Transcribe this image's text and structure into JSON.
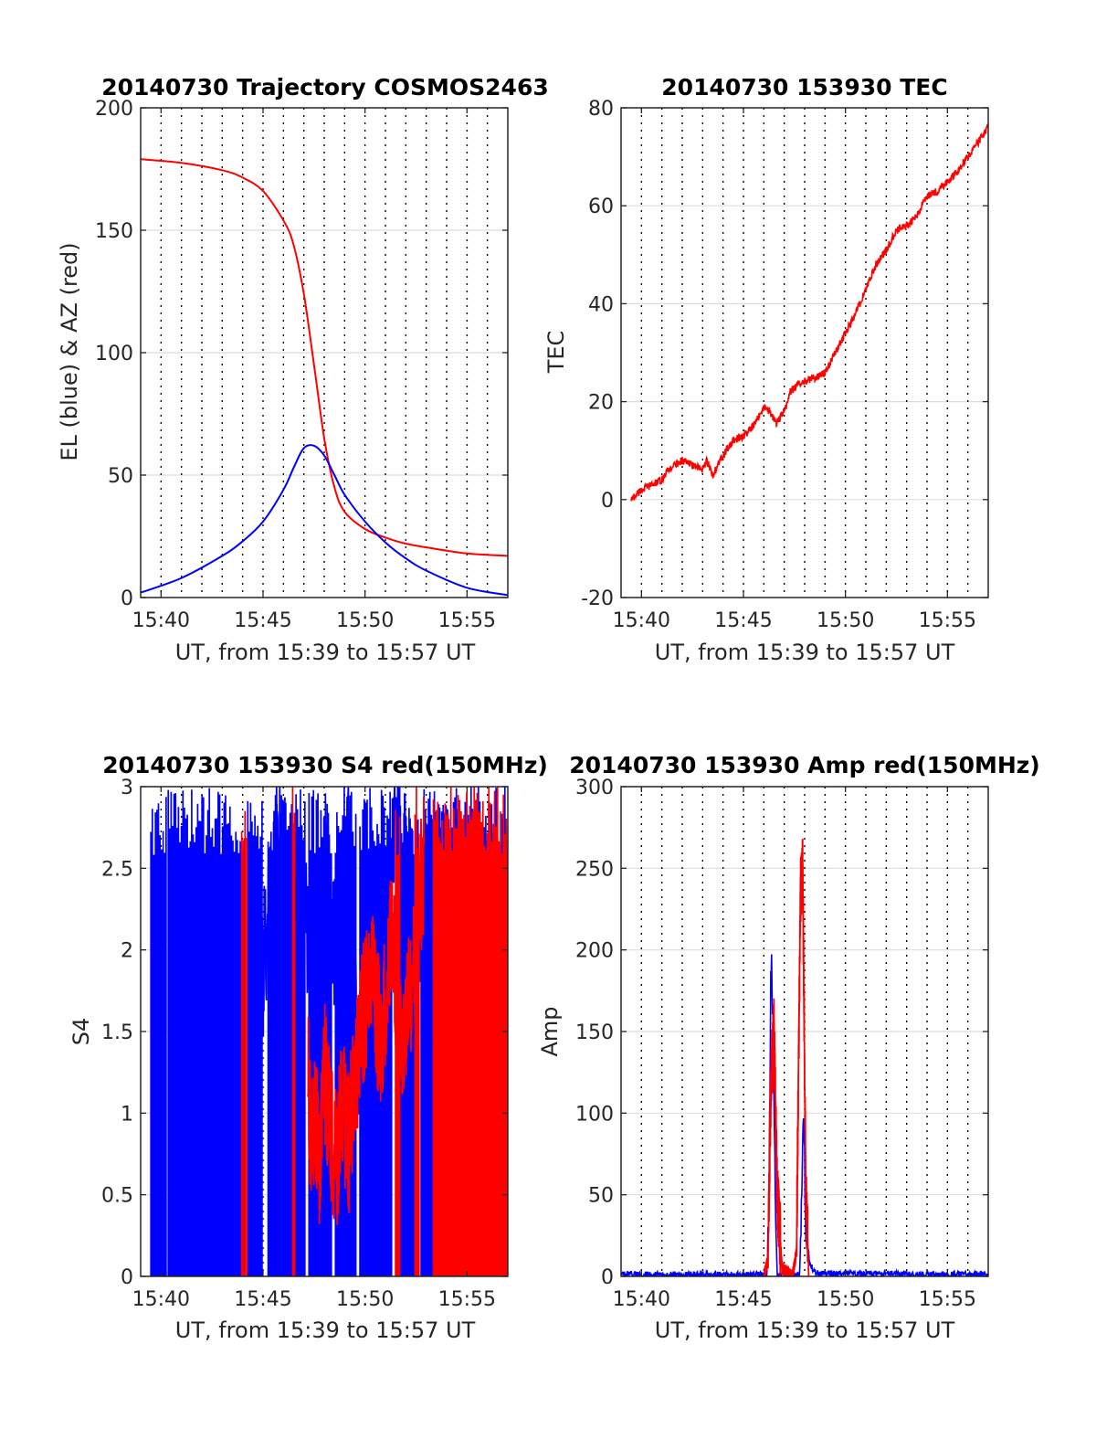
{
  "chart_data": [
    {
      "type": "line",
      "title": "20140730 Trajectory COSMOS2463",
      "xlabel": "UT, from 15:39 to 15:57 UT",
      "ylabel": "EL (blue) & AZ (red)",
      "x_unit": "minutes after 15:39 UT",
      "xlim": [
        0,
        18
      ],
      "ylim": [
        0,
        200
      ],
      "xticks": [
        1,
        6,
        11,
        16
      ],
      "xtick_labels": [
        "15:40",
        "15:45",
        "15:50",
        "15:55"
      ],
      "yticks": [
        0,
        50,
        100,
        150,
        200
      ],
      "ytick_labels": [
        "0",
        "50",
        "100",
        "150",
        "200"
      ],
      "grid": "horizontal solid at y ticks, vertical dotted every minute",
      "series": [
        {
          "color": "#ff0000",
          "style": "smooth",
          "x": [
            0,
            2,
            4,
            5,
            6,
            7,
            7.5,
            8,
            8.5,
            9,
            9.5,
            10,
            11,
            12,
            13,
            14,
            16,
            18
          ],
          "y": [
            179,
            177.5,
            174.5,
            171.5,
            166,
            154,
            144,
            124,
            95,
            65,
            45,
            35,
            28,
            24.5,
            22,
            20.5,
            18,
            17
          ]
        },
        {
          "color": "#0000ff",
          "style": "smooth",
          "x": [
            0,
            2,
            4,
            5,
            6,
            7,
            7.5,
            8,
            8.5,
            9,
            9.5,
            10,
            11,
            12,
            13,
            14,
            16,
            18
          ],
          "y": [
            2,
            8,
            17,
            23,
            31,
            44,
            53,
            61,
            62,
            58,
            50,
            42,
            31,
            22.5,
            16,
            11,
            4,
            1
          ]
        }
      ]
    },
    {
      "type": "line",
      "title": "20140730 153930 TEC",
      "xlabel": "UT, from 15:39 to 15:57 UT",
      "ylabel": "TEC",
      "x_unit": "minutes after 15:39 UT",
      "xlim": [
        0,
        18
      ],
      "ylim": [
        -20,
        80
      ],
      "xticks": [
        1,
        6,
        11,
        16
      ],
      "xtick_labels": [
        "15:40",
        "15:45",
        "15:50",
        "15:55"
      ],
      "yticks": [
        -20,
        0,
        20,
        40,
        60,
        80
      ],
      "ytick_labels": [
        "-20",
        "0",
        "20",
        "40",
        "60",
        "80"
      ],
      "grid": "horizontal solid at y ticks, vertical dotted every minute",
      "series": [
        {
          "color": "#ff0000",
          "style": "noisy",
          "noise": 0.8,
          "x": [
            0.5,
            1,
            1.5,
            2,
            2.3,
            2.6,
            3,
            3.5,
            4,
            4.2,
            4.5,
            5,
            5.5,
            6,
            6.5,
            7,
            7.3,
            7.6,
            8,
            8.3,
            8.8,
            9.2,
            9.6,
            10,
            10.5,
            11,
            11.5,
            12,
            12.5,
            13,
            13.5,
            14,
            14.5,
            15,
            15.5,
            16,
            16.5,
            17,
            17.5,
            18
          ],
          "y": [
            0,
            2,
            3,
            4,
            6,
            7,
            8,
            7,
            6,
            8,
            5,
            9,
            12,
            13,
            15,
            19,
            18,
            15.5,
            18,
            22,
            24,
            24.5,
            25,
            26,
            30,
            34,
            38,
            43,
            48,
            51,
            55,
            56,
            58,
            62,
            63,
            65,
            67,
            70,
            73,
            76
          ]
        }
      ]
    },
    {
      "type": "line",
      "title": "20140730 153930 S4 red(150MHz)",
      "xlabel": "UT, from 15:39 to 15:57 UT",
      "ylabel": "S4",
      "x_unit": "minutes after 15:39 UT",
      "xlim": [
        0,
        18
      ],
      "ylim": [
        0,
        3
      ],
      "xticks": [
        1,
        6,
        11,
        16
      ],
      "xtick_labels": [
        "15:40",
        "15:45",
        "15:50",
        "15:55"
      ],
      "yticks": [
        0,
        0.5,
        1,
        1.5,
        2,
        2.5,
        3
      ],
      "ytick_labels": [
        "0",
        "0.5",
        "1",
        "1.5",
        "2",
        "2.5",
        "3"
      ],
      "grid": "horizontal solid at y ticks, vertical dotted every minute",
      "series": [
        {
          "color": "#0000ff",
          "style": "bands",
          "bands": [
            [
              0.5,
              1.25
            ],
            [
              1.35,
              5.1
            ],
            [
              5.25,
              5.95
            ],
            [
              6.25,
              8.05
            ],
            [
              8.25,
              9.35
            ],
            [
              9.55,
              10.55
            ],
            [
              10.75,
              12.3
            ],
            [
              12.5,
              13.6
            ],
            [
              13.75,
              18
            ]
          ],
          "x": [
            5.6,
            6.8,
            7.4,
            8.1,
            8.6,
            9.1,
            9.6,
            10.2,
            10.7,
            11.2,
            11.7,
            12.5,
            13.8,
            14.8
          ],
          "y": [
            1.5,
            2.7,
            2.3,
            2.1,
            1.6,
            2.5,
            2.0,
            2.6,
            1.1,
            2.3,
            1.2,
            2.8,
            2.0,
            2.5
          ]
        },
        {
          "color": "#ff0000",
          "style": "bands",
          "bands": [
            [
              4.95,
              5.2
            ],
            [
              7.45,
              7.55
            ],
            [
              12.5,
              12.7
            ],
            [
              13.45,
              13.65
            ],
            [
              14.35,
              18
            ]
          ],
          "x": [
            8.2,
            8.4,
            8.6,
            8.8,
            9.0,
            9.3,
            9.6,
            9.9,
            10.2,
            10.5,
            10.9,
            11.3,
            11.8,
            12.3,
            12.8,
            13.3,
            13.9
          ],
          "y": [
            1.2,
            0.8,
            1.0,
            0.6,
            1.3,
            0.9,
            0.7,
            1.1,
            0.8,
            1.2,
            1.6,
            1.9,
            1.4,
            2.2,
            1.3,
            1.8,
            2.6
          ]
        }
      ]
    },
    {
      "type": "line",
      "title": "20140730 153930 Amp red(150MHz)",
      "xlabel": "UT, from 15:39 to 15:57 UT",
      "ylabel": "Amp",
      "x_unit": "minutes after 15:39 UT",
      "xlim": [
        0,
        18
      ],
      "ylim": [
        0,
        300
      ],
      "xticks": [
        1,
        6,
        11,
        16
      ],
      "xtick_labels": [
        "15:40",
        "15:45",
        "15:50",
        "15:55"
      ],
      "yticks": [
        0,
        50,
        100,
        150,
        200,
        250,
        300
      ],
      "ytick_labels": [
        "0",
        "50",
        "100",
        "150",
        "200",
        "250",
        "300"
      ],
      "grid": "horizontal solid at y ticks, vertical dotted every minute",
      "series": [
        {
          "color": "#0000ff",
          "style": "spiky",
          "noise": 2,
          "x": [
            0,
            7.15,
            7.25,
            7.35,
            7.45,
            7.55,
            7.65,
            8.75,
            8.85,
            8.95,
            9.05,
            9.25,
            9.5,
            18
          ],
          "y": [
            1,
            1,
            40,
            200,
            160,
            60,
            1,
            1,
            40,
            110,
            30,
            8,
            2,
            1
          ]
        },
        {
          "color": "#ff0000",
          "style": "spiky",
          "noise": 4,
          "x": [
            7.0,
            7.2,
            7.35,
            7.5,
            7.65,
            7.9,
            8.4,
            8.6,
            8.8,
            8.9,
            9.05,
            9.2
          ],
          "y": [
            0,
            10,
            120,
            150,
            50,
            5,
            0,
            15,
            235,
            255,
            60,
            0
          ]
        }
      ]
    }
  ]
}
